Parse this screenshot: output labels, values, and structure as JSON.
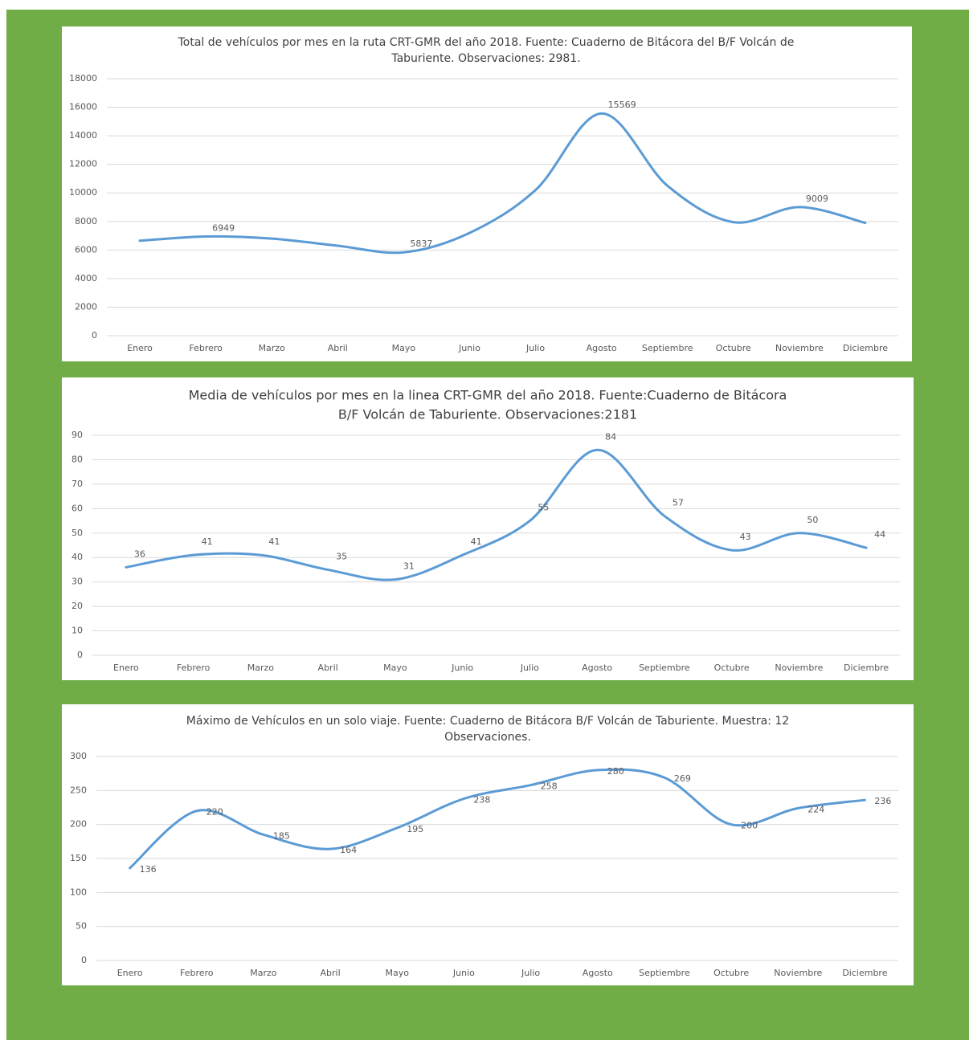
{
  "chart_data": [
    {
      "type": "line",
      "title": [
        "Total de vehículos por mes en la ruta CRT-GMR del año 2018. Fuente: Cuaderno de Bitácora del B/F Volcán de",
        "Taburiente. Observaciones: 2981."
      ],
      "categories": [
        "Enero",
        "Febrero",
        "Marzo",
        "Abril",
        "Mayo",
        "Junio",
        "Julio",
        "Agosto",
        "Septiembre",
        "Octubre",
        "Noviembre",
        "Diciembre"
      ],
      "series": [
        {
          "name": "Total",
          "color": "#5b9bd5",
          "values": [
            6650,
            6949,
            6800,
            6300,
            5837,
            7200,
            10200,
            15569,
            10500,
            7950,
            9009,
            7900
          ],
          "value_labels": [
            null,
            "6949",
            null,
            null,
            "5837",
            null,
            null,
            "15569",
            null,
            null,
            "9009",
            null
          ]
        }
      ],
      "ylim": [
        0,
        18000
      ],
      "yticks": [
        0,
        2000,
        4000,
        6000,
        8000,
        10000,
        12000,
        14000,
        16000,
        18000
      ],
      "grid": true
    },
    {
      "type": "line",
      "title": [
        "Media de vehículos por mes en la linea CRT-GMR del año 2018. Fuente:Cuaderno de Bitácora",
        "B/F Volcán de Taburiente. Observaciones:2181"
      ],
      "categories": [
        "Enero",
        "Febrero",
        "Marzo",
        "Abril",
        "Mayo",
        "Junio",
        "Julio",
        "Agosto",
        "Septiembre",
        "Octubre",
        "Noviembre",
        "Diciembre"
      ],
      "series": [
        {
          "name": "Media",
          "color": "#5b9bd5",
          "values": [
            36,
            41,
            41,
            35,
            31,
            41,
            55,
            84,
            57,
            43,
            50,
            44
          ]
        }
      ],
      "ylim": [
        0,
        90
      ],
      "yticks": [
        0,
        10,
        20,
        30,
        40,
        50,
        60,
        70,
        80,
        90
      ],
      "grid": true
    },
    {
      "type": "line",
      "title": [
        "Máximo de Vehículos en un solo viaje. Fuente: Cuaderno de Bitácora B/F Volcán de Taburiente. Muestra: 12",
        "Observaciones."
      ],
      "categories": [
        "Enero",
        "Febrero",
        "Marzo",
        "Abril",
        "Mayo",
        "Junio",
        "Julio",
        "Agosto",
        "Septiembre",
        "Octubre",
        "Noviembre",
        "Diciembre"
      ],
      "series": [
        {
          "name": "Máximo",
          "color": "#5b9bd5",
          "values": [
            136,
            220,
            185,
            164,
            195,
            238,
            258,
            280,
            269,
            200,
            224,
            236
          ]
        }
      ],
      "ylim": [
        0,
        300
      ],
      "yticks": [
        0,
        50,
        100,
        150,
        200,
        250,
        300
      ],
      "grid": true
    }
  ]
}
